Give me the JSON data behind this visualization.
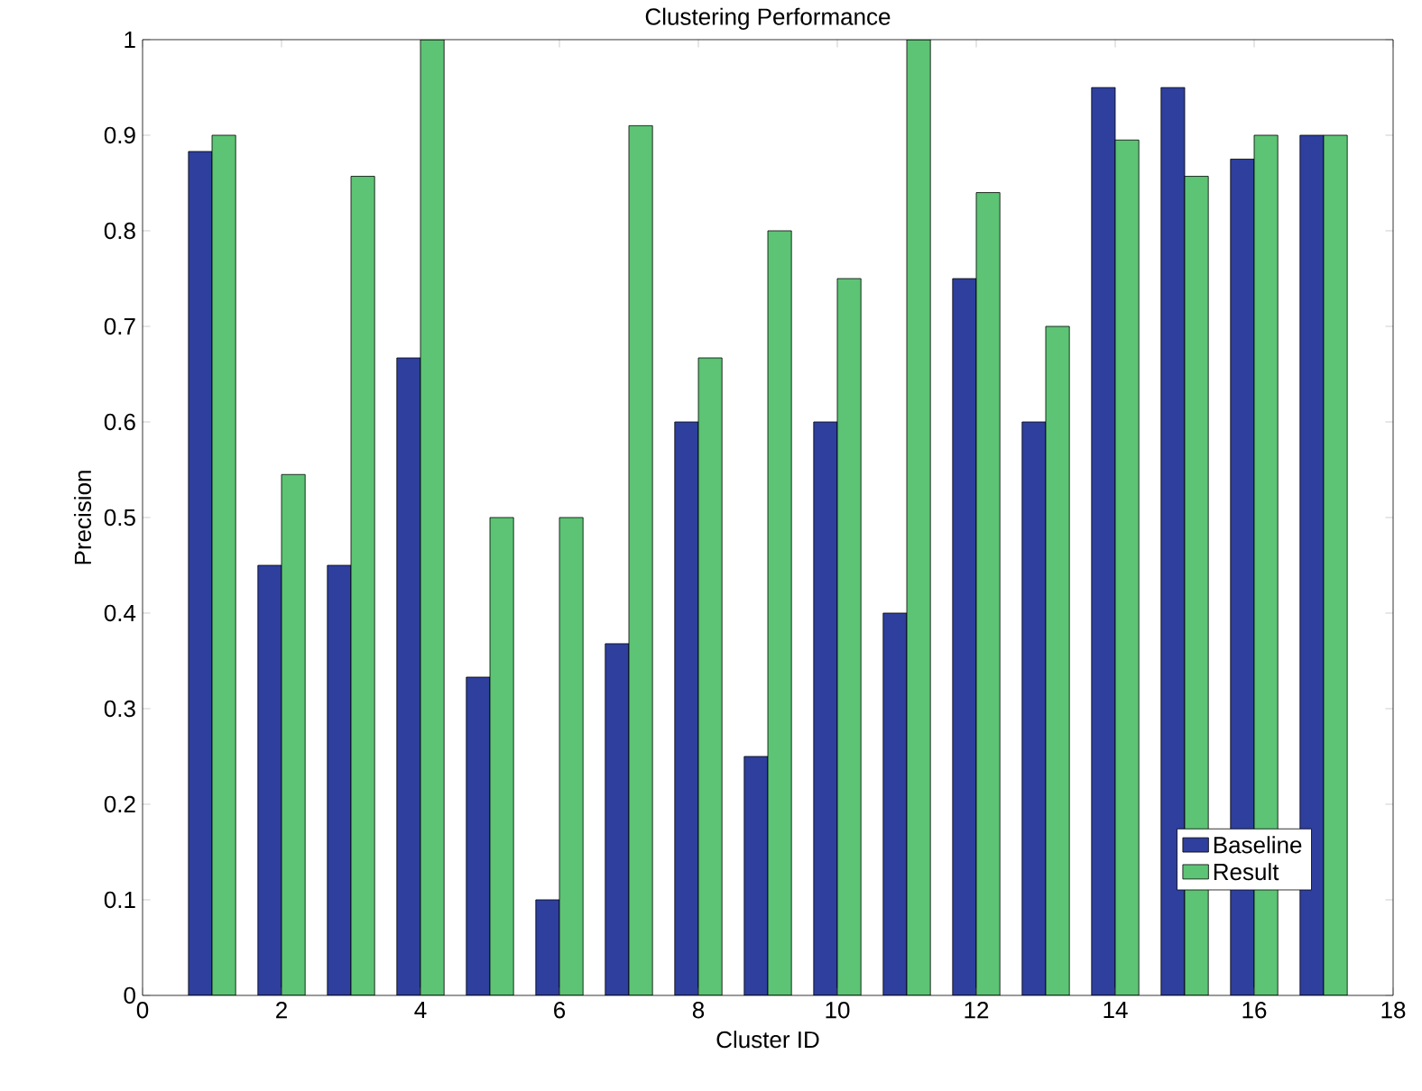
{
  "chart_data": {
    "type": "bar",
    "title": "Clustering Performance",
    "xlabel": "Cluster ID",
    "ylabel": "Precision",
    "x": [
      1,
      2,
      3,
      4,
      5,
      6,
      7,
      8,
      9,
      10,
      11,
      12,
      13,
      14,
      15,
      16,
      17
    ],
    "series": [
      {
        "name": "Baseline",
        "color": "#2e3f9e",
        "values": [
          0.883,
          0.45,
          0.45,
          0.667,
          0.333,
          0.1,
          0.368,
          0.6,
          0.25,
          0.6,
          0.4,
          0.75,
          0.6,
          0.95,
          0.95,
          0.875,
          0.9
        ]
      },
      {
        "name": "Result",
        "color": "#5cc474",
        "values": [
          0.9,
          0.545,
          0.857,
          1.0,
          0.5,
          0.5,
          0.91,
          0.667,
          0.8,
          0.75,
          1.0,
          0.84,
          0.7,
          0.895,
          0.857,
          0.9,
          0.9
        ]
      }
    ],
    "xlim": [
      0,
      18
    ],
    "ylim": [
      0,
      1
    ],
    "xticks": [
      0,
      2,
      4,
      6,
      8,
      10,
      12,
      14,
      16,
      18
    ],
    "yticks": [
      0,
      0.1,
      0.2,
      0.3,
      0.4,
      0.5,
      0.6,
      0.7,
      0.8,
      0.9,
      1
    ],
    "legend": "bottom right",
    "grid": false
  }
}
